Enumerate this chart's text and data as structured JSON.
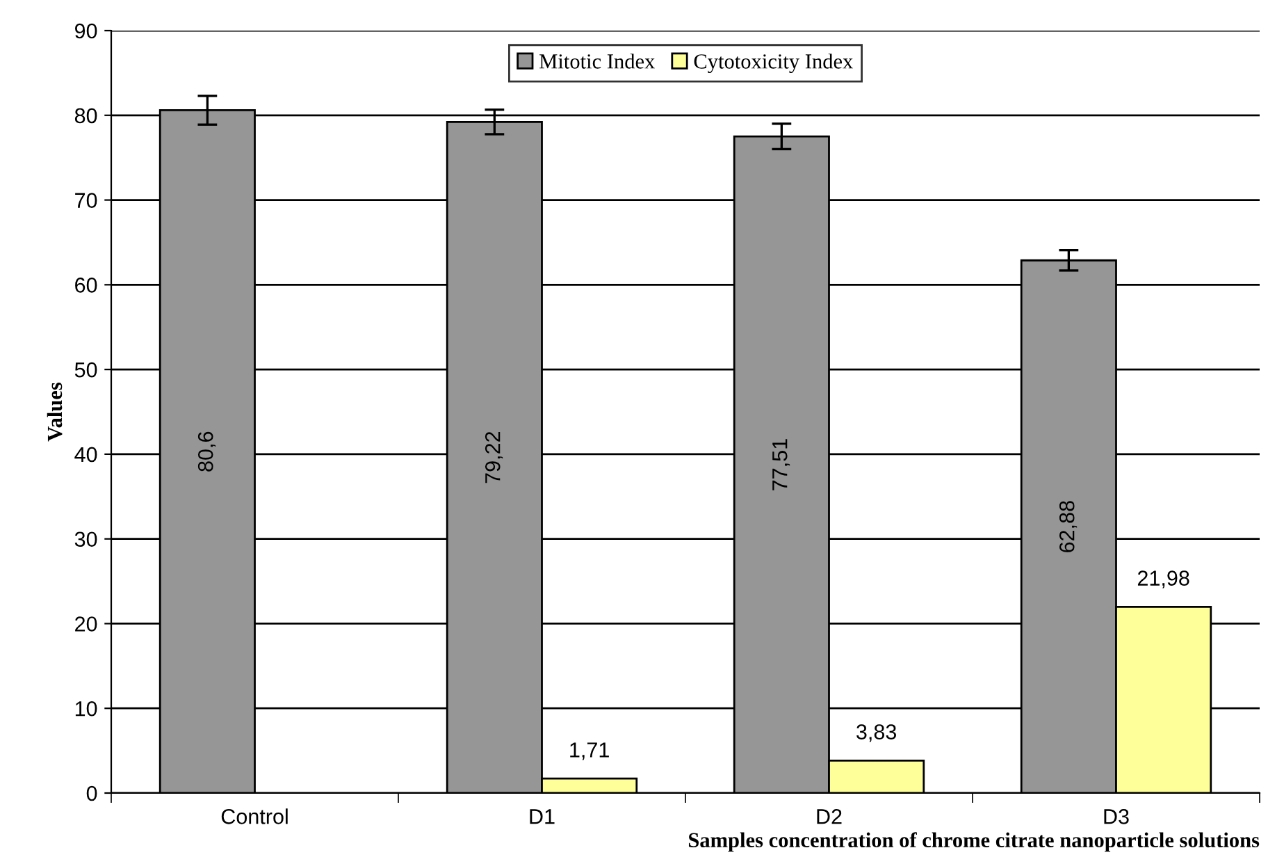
{
  "chart_data": {
    "type": "bar",
    "xlabel": "Samples concentration of chrome citrate nanoparticle solutions",
    "ylabel": "Values",
    "categories": [
      "Control",
      "D1",
      "D2",
      "D3"
    ],
    "series": [
      {
        "name": "Mitotic Index",
        "color": "#969696",
        "values": [
          80.6,
          79.22,
          77.51,
          62.88
        ],
        "errors": [
          1.7,
          1.45,
          1.5,
          1.2
        ],
        "value_labels": [
          "80,6",
          "79,22",
          "77,51",
          "62,88"
        ]
      },
      {
        "name": "Cytotoxicity Index",
        "color": "#ffff99",
        "values": [
          null,
          1.71,
          3.83,
          21.98
        ],
        "value_labels": [
          null,
          "1,71",
          "3,83",
          "21,98"
        ]
      }
    ],
    "ylim": [
      0,
      90
    ],
    "yticks": [
      0,
      10,
      20,
      30,
      40,
      50,
      60,
      70,
      80,
      90
    ],
    "grid": "y",
    "legend": "top"
  }
}
